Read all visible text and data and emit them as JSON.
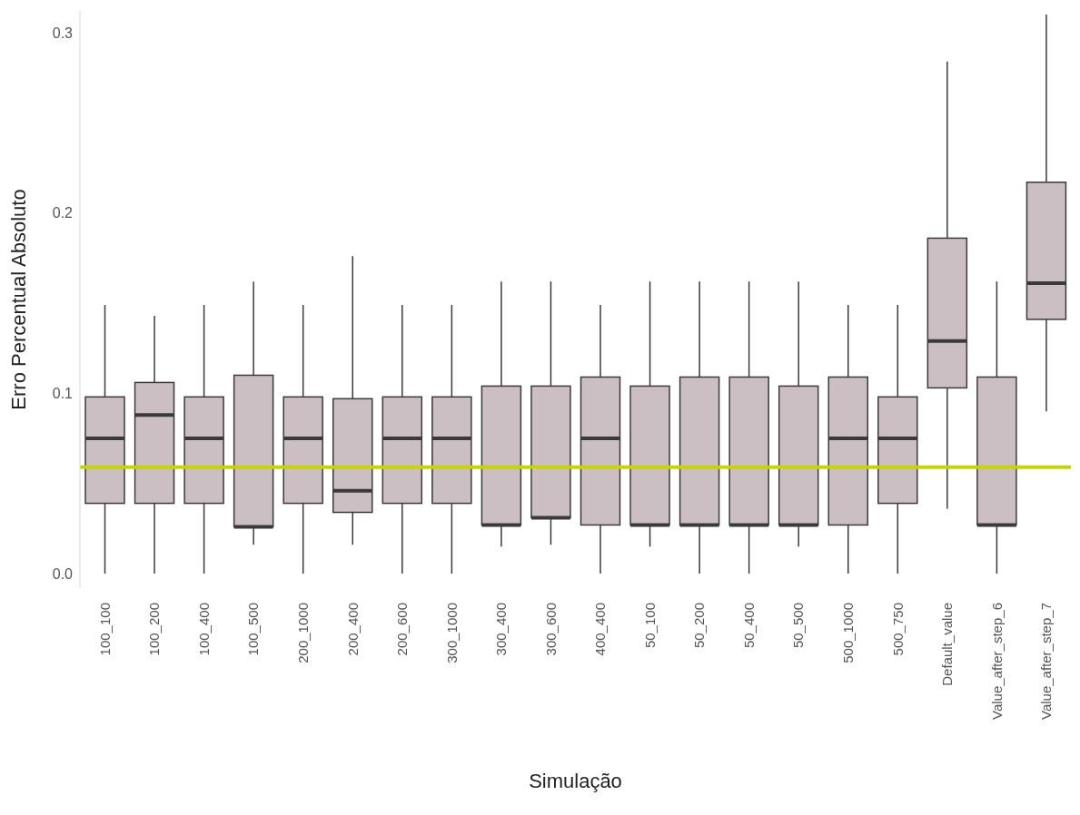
{
  "chart_data": {
    "type": "box",
    "categories": [
      "100_100",
      "100_200",
      "100_400",
      "100_500",
      "200_1000",
      "200_400",
      "200_600",
      "300_1000",
      "300_400",
      "300_600",
      "400_400",
      "50_100",
      "50_200",
      "50_400",
      "50_500",
      "500_1000",
      "500_750",
      "Default_value",
      "Value_after_step_6",
      "Value_after_step_7"
    ],
    "boxes": [
      {
        "low": 0,
        "q1": 0.039,
        "median": 0.075,
        "q3": 0.098,
        "high": 0.149
      },
      {
        "low": 0,
        "q1": 0.039,
        "median": 0.088,
        "q3": 0.106,
        "high": 0.143
      },
      {
        "low": 0,
        "q1": 0.039,
        "median": 0.075,
        "q3": 0.098,
        "high": 0.149
      },
      {
        "low": 0.016,
        "q1": 0.026,
        "median": 0.026,
        "q3": 0.11,
        "high": 0.162
      },
      {
        "low": 0,
        "q1": 0.039,
        "median": 0.075,
        "q3": 0.098,
        "high": 0.149
      },
      {
        "low": 0.016,
        "q1": 0.034,
        "median": 0.046,
        "q3": 0.097,
        "high": 0.176
      },
      {
        "low": 0,
        "q1": 0.039,
        "median": 0.075,
        "q3": 0.098,
        "high": 0.149
      },
      {
        "low": 0,
        "q1": 0.039,
        "median": 0.075,
        "q3": 0.098,
        "high": 0.149
      },
      {
        "low": 0.015,
        "q1": 0.027,
        "median": 0.027,
        "q3": 0.104,
        "high": 0.162
      },
      {
        "low": 0.016,
        "q1": 0.031,
        "median": 0.031,
        "q3": 0.104,
        "high": 0.162
      },
      {
        "low": 0,
        "q1": 0.027,
        "median": 0.075,
        "q3": 0.109,
        "high": 0.149
      },
      {
        "low": 0.015,
        "q1": 0.027,
        "median": 0.027,
        "q3": 0.104,
        "high": 0.162
      },
      {
        "low": 0,
        "q1": 0.027,
        "median": 0.027,
        "q3": 0.109,
        "high": 0.162
      },
      {
        "low": 0,
        "q1": 0.027,
        "median": 0.027,
        "q3": 0.109,
        "high": 0.162
      },
      {
        "low": 0.015,
        "q1": 0.027,
        "median": 0.027,
        "q3": 0.104,
        "high": 0.162
      },
      {
        "low": 0,
        "q1": 0.027,
        "median": 0.075,
        "q3": 0.109,
        "high": 0.149
      },
      {
        "low": 0,
        "q1": 0.039,
        "median": 0.075,
        "q3": 0.098,
        "high": 0.149
      },
      {
        "low": 0.036,
        "q1": 0.103,
        "median": 0.129,
        "q3": 0.186,
        "high": 0.284
      },
      {
        "low": 0,
        "q1": 0.027,
        "median": 0.027,
        "q3": 0.109,
        "high": 0.162
      },
      {
        "low": 0.09,
        "q1": 0.141,
        "median": 0.161,
        "q3": 0.217,
        "high": 0.31
      }
    ],
    "color": "#cbbfc3",
    "xlabel": "Simulação",
    "ylabel": "Erro Percentual Absoluto",
    "ylim": [
      -0.008,
      0.312
    ],
    "yticks": [
      {
        "value": 0,
        "label": "0.0"
      },
      0.1,
      0.2,
      0.3
    ],
    "ref_lines": [
      {
        "axis": "y",
        "value": 0.059,
        "label": null,
        "color": "#c8d400"
      }
    ],
    "grid": false,
    "legend": false
  }
}
